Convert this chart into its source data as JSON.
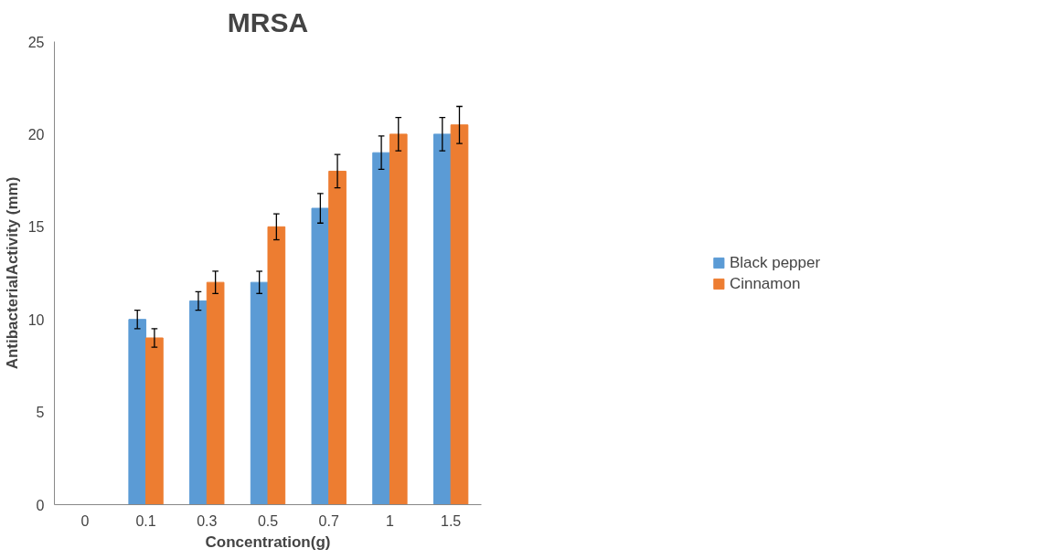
{
  "chart_data": {
    "type": "bar",
    "title": "MRSA",
    "xlabel": "Concentration(g)",
    "ylabel": "AntibacterialActivity (mm)",
    "categories": [
      "0",
      "0.1",
      "0.3",
      "0.5",
      "0.7",
      "1",
      "1.5"
    ],
    "series": [
      {
        "name": "Black pepper",
        "color": "#5b9bd5",
        "values": [
          0,
          10,
          11,
          12,
          16,
          19,
          20
        ],
        "errors": [
          null,
          0.5,
          0.5,
          0.6,
          0.8,
          0.9,
          0.9
        ]
      },
      {
        "name": "Cinnamon",
        "color": "#ed7d31",
        "values": [
          0,
          9,
          12,
          15,
          18,
          20,
          20.5
        ],
        "errors": [
          null,
          0.5,
          0.6,
          0.7,
          0.9,
          0.9,
          1.0
        ]
      }
    ],
    "ylim": [
      0,
      25
    ],
    "yticks": [
      0,
      5,
      10,
      15,
      20,
      25
    ],
    "grid": false,
    "legend": "right"
  }
}
